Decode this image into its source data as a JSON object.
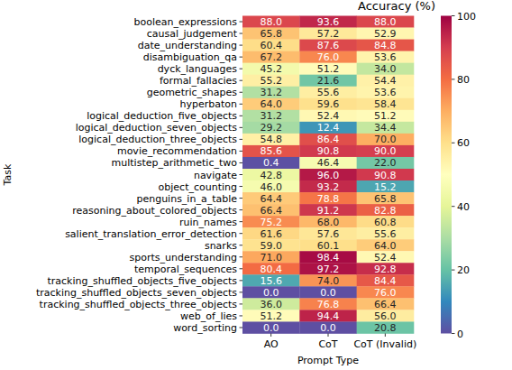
{
  "chart_data": {
    "type": "heatmap",
    "title": "Accuracy (%)",
    "x_label": "Prompt Type",
    "y_label": "Task",
    "color": "Spectral_r",
    "data_labels": true,
    "zlim": [
      0,
      100
    ],
    "zticks": [
      0,
      20,
      40,
      60,
      80,
      100
    ],
    "categories": [
      "boolean_expressions",
      "causal_judgement",
      "date_understanding",
      "disambiguation_qa",
      "dyck_languages",
      "formal_fallacies",
      "geometric_shapes",
      "hyperbaton",
      "logical_deduction_five_objects",
      "logical_deduction_seven_objects",
      "logical_deduction_three_objects",
      "movie_recommendation",
      "multistep_arithmetic_two",
      "navigate",
      "object_counting",
      "penguins_in_a_table",
      "reasoning_about_colored_objects",
      "ruin_names",
      "salient_translation_error_detection",
      "snarks",
      "sports_understanding",
      "temporal_sequences",
      "tracking_shuffled_objects_five_objects",
      "tracking_shuffled_objects_seven_objects",
      "tracking_shuffled_objects_three_objects",
      "web_of_lies",
      "word_sorting"
    ],
    "series": [
      {
        "name": "AO",
        "values": [
          88.0,
          65.8,
          60.4,
          67.2,
          45.2,
          55.2,
          31.2,
          64.0,
          31.2,
          29.2,
          54.8,
          85.6,
          0.4,
          42.8,
          46.0,
          64.4,
          66.4,
          75.2,
          61.6,
          59.0,
          71.0,
          80.4,
          15.6,
          0.0,
          36.0,
          51.2,
          0.0
        ],
        "value_labels": [
          "88.0",
          "65.8",
          "60.4",
          "67.2",
          "45.2",
          "55.2",
          "31.2",
          "64.0",
          "31.2",
          "29.2",
          "54.8",
          "85.6",
          "0.4",
          "42.8",
          "46.0",
          "64.4",
          "66.4",
          "75.2",
          "61.6",
          "59.0",
          "71.0",
          "80.4",
          "15.6",
          "0.0",
          "36.0",
          "51.2",
          "0.0"
        ]
      },
      {
        "name": "CoT",
        "values": [
          93.6,
          57.2,
          87.6,
          76.0,
          51.2,
          21.6,
          55.6,
          59.6,
          52.4,
          12.4,
          86.4,
          90.8,
          46.4,
          96.0,
          93.2,
          78.8,
          91.2,
          68.0,
          57.6,
          60.1,
          98.4,
          97.2,
          74.0,
          0.0,
          76.8,
          94.4,
          0.0
        ],
        "value_labels": [
          "93.6",
          "57.2",
          "87.6",
          "76.0",
          "51.2",
          "21.6",
          "55.6",
          "59.6",
          "52.4",
          "12.4",
          "86.4",
          "90.8",
          "46.4",
          "96.0",
          "93.2",
          "78.8",
          "91.2",
          "68.0",
          "57.6",
          "60.1",
          "98.4",
          "97.2",
          "74.0",
          "0.0",
          "76.8",
          "94.4",
          "0.0"
        ]
      },
      {
        "name": "CoT (Invalid)",
        "values": [
          88.0,
          52.9,
          84.8,
          53.6,
          34.0,
          54.4,
          53.6,
          58.4,
          51.2,
          34.4,
          70.0,
          90.0,
          22.0,
          90.8,
          15.2,
          65.8,
          82.8,
          60.8,
          55.6,
          64.0,
          52.4,
          92.8,
          84.4,
          76.0,
          66.4,
          56.0,
          20.8
        ],
        "value_labels": [
          "88.0",
          "52.9",
          "84.8",
          "53.6",
          "34.0",
          "54.4",
          "53.6",
          "58.4",
          "51.2",
          "34.4",
          "70.0",
          "90.0",
          "22.0",
          "90.8",
          "15.2",
          "65.8",
          "82.8",
          "60.8",
          "55.6",
          "64.0",
          "52.4",
          "92.8",
          "84.4",
          "76.0",
          "66.4",
          "56.0",
          "20.8"
        ]
      }
    ]
  }
}
